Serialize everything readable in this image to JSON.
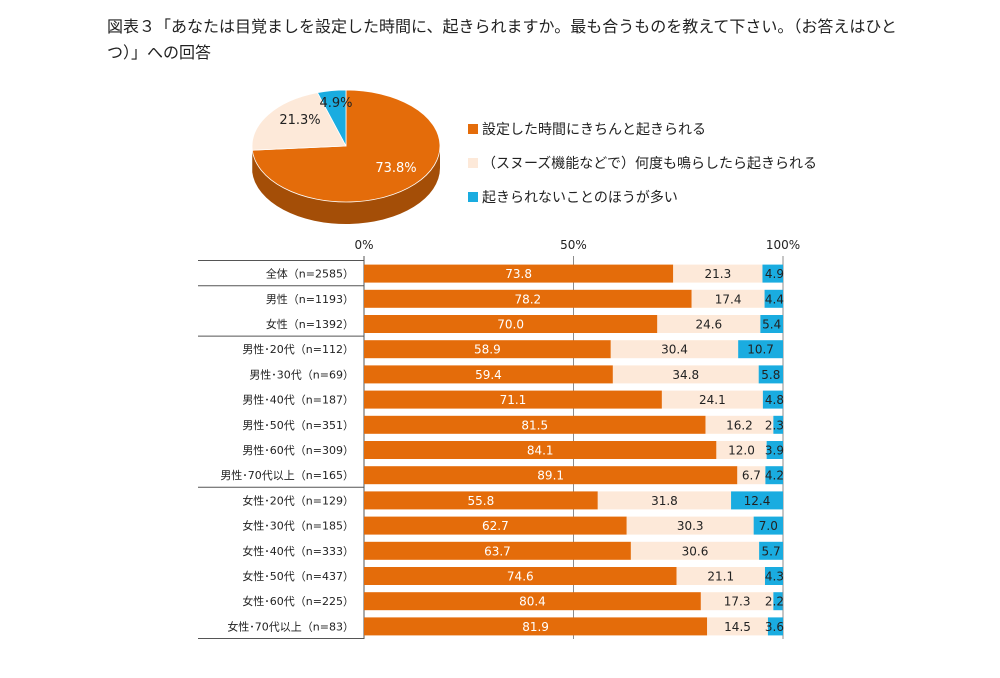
{
  "title": "図表３「あなたは目覚ましを設定した時間に、起きられますか。最も合うものを教えて下さい。（お答えはひとつ）」への回答",
  "colors": {
    "s1": "#e46c0a",
    "s2": "#fde9d9",
    "s3": "#1aace0"
  },
  "chart_data": [
    {
      "type": "pie",
      "slices": [
        {
          "label": "設定した時間にきちんと起きられる",
          "value": 73.8,
          "text": "73.8%"
        },
        {
          "label": "（スヌーズ機能などで）何度も鳴らしたら起きられる",
          "value": 21.3,
          "text": "21.3%"
        },
        {
          "label": "起きられないことのほうが多い",
          "value": 4.9,
          "text": "4.9%"
        }
      ]
    },
    {
      "type": "bar",
      "stacked": true,
      "orientation": "horizontal",
      "xticks": [
        "0%",
        "50%",
        "100%"
      ],
      "xlim": [
        0,
        100
      ],
      "categories": [
        "全体（n=2585）",
        "男性（n=1193）",
        "女性（n=1392）",
        "男性･20代（n=112）",
        "男性･30代（n=69）",
        "男性･40代（n=187）",
        "男性･50代（n=351）",
        "男性･60代（n=309）",
        "男性･70代以上（n=165）",
        "女性･20代（n=129）",
        "女性･30代（n=185）",
        "女性･40代（n=333）",
        "女性･50代（n=437）",
        "女性･60代（n=225）",
        "女性･70代以上（n=83）"
      ],
      "series": [
        {
          "name": "設定した時間にきちんと起きられる",
          "values": [
            "73.8",
            "78.2",
            "70.0",
            "58.9",
            "59.4",
            "71.1",
            "81.5",
            "84.1",
            "89.1",
            "55.8",
            "62.7",
            "63.7",
            "74.6",
            "80.4",
            "81.9"
          ]
        },
        {
          "name": "（スヌーズ機能などで）何度も鳴らしたら起きられる",
          "values": [
            "21.3",
            "17.4",
            "24.6",
            "30.4",
            "34.8",
            "24.1",
            "16.2",
            "12.0",
            "6.7",
            "31.8",
            "30.3",
            "30.6",
            "21.1",
            "17.3",
            "14.5"
          ]
        },
        {
          "name": "起きられないことのほうが多い",
          "values": [
            "4.9",
            "4.4",
            "5.4",
            "10.7",
            "5.8",
            "4.8",
            "2.3",
            "3.9",
            "4.2",
            "12.4",
            "7.0",
            "5.7",
            "4.3",
            "2.2",
            "3.6"
          ]
        }
      ]
    }
  ]
}
